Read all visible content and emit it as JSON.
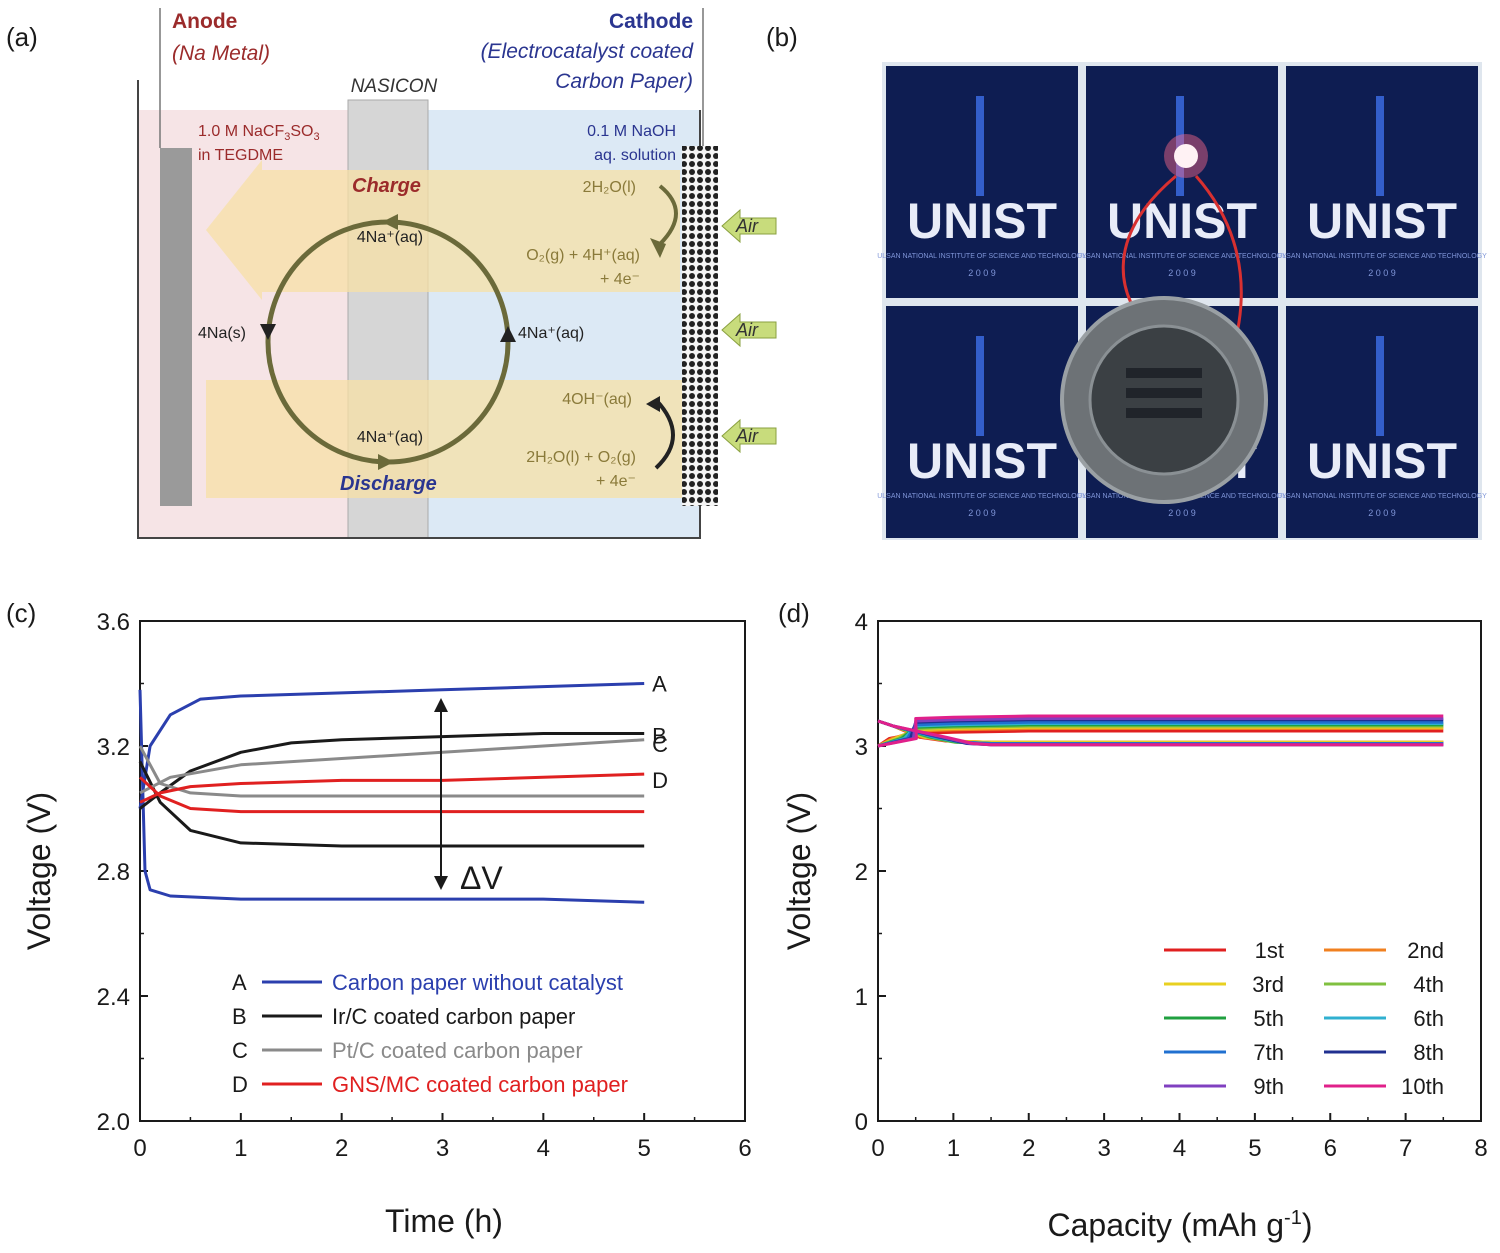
{
  "panel_labels": {
    "a": "(a)",
    "b": "(b)",
    "c": "(c)",
    "d": "(d)"
  },
  "schematic": {
    "anode_title": "Anode",
    "anode_sub": "(Na Metal)",
    "cathode_title": "Cathode",
    "cathode_sub1": "(Electrocatalyst coated",
    "cathode_sub2": "Carbon Paper)",
    "separator": "NASICON",
    "anolyte1": "1.0 M NaCF",
    "anolyte1_sub": "3",
    "anolyte1_tail": "SO",
    "anolyte1_sub2": "3",
    "anolyte2": "in TEGDME",
    "catholyte1": "0.1 M NaOH",
    "catholyte2": "aq. solution",
    "charge": "Charge",
    "discharge": "Discharge",
    "na_top": "4Na⁺(aq)",
    "na_bottom": "4Na⁺(aq)",
    "na_left": "4Na(s)",
    "na_right": "4Na⁺(aq)",
    "h2o_top": "2H₂O(l)",
    "o2_line1": "O₂(g) + 4H⁺(aq)",
    "o2_line2": "+ 4e⁻",
    "oh": "4OH⁻(aq)",
    "h2o_o2_line1": "2H₂O(l) + O₂(g)",
    "h2o_o2_line2": "+ 4e⁻",
    "air": "Air"
  },
  "photo": {
    "logo_text": "UNIST",
    "logo_sub": "ULSAN NATIONAL INSTITUTE OF SCIENCE AND TECHNOLOGY",
    "logo_year": "2 0 0 9"
  },
  "colors": {
    "A": "#2b3fae",
    "B": "#1a1a1a",
    "C": "#8a8a8a",
    "D": "#e02020",
    "anode": "#9b2b2b",
    "cathode": "#2a3590"
  },
  "chart_data": [
    {
      "type": "line",
      "xlabel": "Time (h)",
      "ylabel": "Voltage (V)",
      "xlim": [
        0,
        6
      ],
      "ylim": [
        2.0,
        3.6
      ],
      "xticks": [
        "0",
        "1",
        "2",
        "3",
        "4",
        "5",
        "6"
      ],
      "yticks": [
        "2.0",
        "2.4",
        "2.8",
        "3.2",
        "3.6"
      ],
      "annotation": "ΔV",
      "series": [
        {
          "name": "Carbon paper without catalyst",
          "letter": "A",
          "charge": [
            [
              0,
              3.0
            ],
            [
              0.1,
              3.2
            ],
            [
              0.3,
              3.3
            ],
            [
              0.6,
              3.35
            ],
            [
              1,
              3.36
            ],
            [
              2,
              3.37
            ],
            [
              3,
              3.38
            ],
            [
              4,
              3.39
            ],
            [
              5,
              3.4
            ]
          ],
          "discharge": [
            [
              0,
              3.38
            ],
            [
              0.05,
              2.8
            ],
            [
              0.1,
              2.74
            ],
            [
              0.3,
              2.72
            ],
            [
              1,
              2.71
            ],
            [
              2,
              2.71
            ],
            [
              3,
              2.71
            ],
            [
              4,
              2.71
            ],
            [
              5,
              2.7
            ]
          ]
        },
        {
          "name": "Ir/C coated carbon paper",
          "letter": "B",
          "charge": [
            [
              0,
              3.0
            ],
            [
              0.2,
              3.05
            ],
            [
              0.5,
              3.12
            ],
            [
              1,
              3.18
            ],
            [
              1.5,
              3.21
            ],
            [
              2,
              3.22
            ],
            [
              3,
              3.23
            ],
            [
              4,
              3.24
            ],
            [
              5,
              3.24
            ]
          ],
          "discharge": [
            [
              0,
              3.15
            ],
            [
              0.2,
              3.02
            ],
            [
              0.5,
              2.93
            ],
            [
              1,
              2.89
            ],
            [
              2,
              2.88
            ],
            [
              3,
              2.88
            ],
            [
              4,
              2.88
            ],
            [
              5,
              2.88
            ]
          ]
        },
        {
          "name": "Pt/C coated carbon paper",
          "letter": "C",
          "charge": [
            [
              0,
              3.05
            ],
            [
              0.3,
              3.1
            ],
            [
              1,
              3.14
            ],
            [
              2,
              3.16
            ],
            [
              3,
              3.18
            ],
            [
              4,
              3.2
            ],
            [
              5,
              3.22
            ]
          ],
          "discharge": [
            [
              0,
              3.2
            ],
            [
              0.2,
              3.08
            ],
            [
              0.5,
              3.05
            ],
            [
              1,
              3.04
            ],
            [
              2,
              3.04
            ],
            [
              3,
              3.04
            ],
            [
              4,
              3.04
            ],
            [
              5,
              3.04
            ]
          ]
        },
        {
          "name": "GNS/MC coated carbon paper",
          "letter": "D",
          "charge": [
            [
              0,
              3.02
            ],
            [
              0.2,
              3.05
            ],
            [
              0.5,
              3.07
            ],
            [
              1,
              3.08
            ],
            [
              2,
              3.09
            ],
            [
              3,
              3.09
            ],
            [
              4,
              3.1
            ],
            [
              5,
              3.11
            ]
          ],
          "discharge": [
            [
              0,
              3.1
            ],
            [
              0.2,
              3.04
            ],
            [
              0.5,
              3.0
            ],
            [
              1,
              2.99
            ],
            [
              2,
              2.99
            ],
            [
              3,
              2.99
            ],
            [
              4,
              2.99
            ],
            [
              5,
              2.99
            ]
          ]
        }
      ]
    },
    {
      "type": "line",
      "xlabel": "Capacity (mAh g",
      "xlabel_sup": "-1",
      "xlabel_tail": ")",
      "ylabel": "Voltage (V)",
      "xlim": [
        0,
        8
      ],
      "ylim": [
        0,
        4
      ],
      "xticks": [
        "0",
        "1",
        "2",
        "3",
        "4",
        "5",
        "6",
        "7",
        "8"
      ],
      "yticks": [
        "0",
        "1",
        "2",
        "3",
        "4"
      ],
      "series": [
        {
          "name": "1st",
          "color": "#e02020",
          "charge": 3.12,
          "discharge": 3.03
        },
        {
          "name": "2nd",
          "color": "#f08020",
          "charge": 3.14,
          "discharge": 3.03
        },
        {
          "name": "3rd",
          "color": "#e8d020",
          "charge": 3.15,
          "discharge": 3.03
        },
        {
          "name": "4th",
          "color": "#80c040",
          "charge": 3.16,
          "discharge": 3.02
        },
        {
          "name": "5th",
          "color": "#20a040",
          "charge": 3.17,
          "discharge": 3.02
        },
        {
          "name": "6th",
          "color": "#30b0d0",
          "charge": 3.18,
          "discharge": 3.02
        },
        {
          "name": "7th",
          "color": "#2070d0",
          "charge": 3.19,
          "discharge": 3.02
        },
        {
          "name": "8th",
          "color": "#203090",
          "charge": 3.21,
          "discharge": 3.01
        },
        {
          "name": "9th",
          "color": "#8040c0",
          "charge": 3.22,
          "discharge": 3.01
        },
        {
          "name": "10th",
          "color": "#e0208a",
          "charge": 3.24,
          "discharge": 3.01
        }
      ]
    }
  ]
}
